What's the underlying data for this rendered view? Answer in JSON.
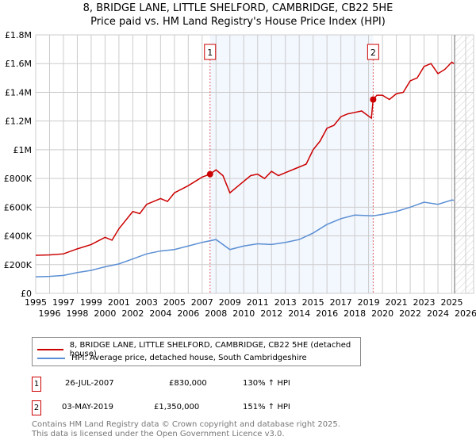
{
  "chart_data": {
    "type": "line",
    "title": "8, BRIDGE LANE, LITTLE SHELFORD, CAMBRIDGE, CB22 5HE",
    "subtitle": "Price paid vs. HM Land Registry's House Price Index (HPI)",
    "xlim": [
      1995,
      2026
    ],
    "ylim": [
      0,
      1800000
    ],
    "grid": true,
    "x_ticks": [
      1995,
      1996,
      1997,
      1998,
      1999,
      2000,
      2001,
      2002,
      2003,
      2004,
      2005,
      2006,
      2007,
      2008,
      2009,
      2010,
      2011,
      2012,
      2013,
      2014,
      2015,
      2016,
      2017,
      2018,
      2019,
      2020,
      2021,
      2022,
      2023,
      2024,
      2025,
      2026
    ],
    "y_ticks": [
      {
        "v": 0,
        "label": "£0"
      },
      {
        "v": 200000,
        "label": "£200K"
      },
      {
        "v": 400000,
        "label": "£400K"
      },
      {
        "v": 600000,
        "label": "£600K"
      },
      {
        "v": 800000,
        "label": "£800K"
      },
      {
        "v": 1000000,
        "label": "£1M"
      },
      {
        "v": 1200000,
        "label": "£1.2M"
      },
      {
        "v": 1400000,
        "label": "£1.4M"
      },
      {
        "v": 1600000,
        "label": "£1.6M"
      },
      {
        "v": 1800000,
        "label": "£1.8M"
      }
    ],
    "shaded_range": [
      2007.57,
      2019.33
    ],
    "forecast_start": 2025.2,
    "series": [
      {
        "name": "8, BRIDGE LANE, LITTLE SHELFORD, CAMBRIDGE, CB22 5HE (detached house)",
        "color": "#cc0000",
        "x": [
          1995,
          1996,
          1997,
          1998,
          1999,
          2000,
          2000.5,
          2001,
          2002,
          2002.5,
          2003,
          2004,
          2004.5,
          2005,
          2006,
          2007,
          2007.57,
          2008,
          2008.5,
          2009,
          2009.5,
          2010,
          2010.5,
          2011,
          2011.5,
          2012,
          2012.5,
          2013,
          2014,
          2014.5,
          2015,
          2015.5,
          2016,
          2016.5,
          2017,
          2017.5,
          2018,
          2018.5,
          2019.2,
          2019.33,
          2019.6,
          2020,
          2020.5,
          2021,
          2021.5,
          2022,
          2022.5,
          2023,
          2023.5,
          2024,
          2024.5,
          2025,
          2025.15
        ],
        "y": [
          265000,
          268000,
          275000,
          310000,
          340000,
          390000,
          370000,
          450000,
          570000,
          555000,
          620000,
          660000,
          640000,
          700000,
          750000,
          810000,
          830000,
          860000,
          820000,
          700000,
          740000,
          780000,
          820000,
          830000,
          800000,
          850000,
          820000,
          840000,
          880000,
          900000,
          1000000,
          1060000,
          1150000,
          1170000,
          1230000,
          1250000,
          1260000,
          1270000,
          1220000,
          1350000,
          1380000,
          1380000,
          1350000,
          1390000,
          1400000,
          1480000,
          1500000,
          1580000,
          1600000,
          1530000,
          1560000,
          1610000,
          1600000
        ]
      },
      {
        "name": "HPI: Average price, detached house, South Cambridgeshire",
        "color": "#5b8fd4",
        "x": [
          1995,
          1996,
          1997,
          1998,
          1999,
          2000,
          2001,
          2002,
          2003,
          2004,
          2005,
          2006,
          2007,
          2008,
          2009,
          2010,
          2011,
          2012,
          2013,
          2014,
          2015,
          2016,
          2017,
          2018,
          2019.33,
          2020,
          2021,
          2022,
          2023,
          2024,
          2025,
          2025.15
        ],
        "y": [
          115000,
          118000,
          125000,
          145000,
          160000,
          185000,
          205000,
          240000,
          275000,
          295000,
          305000,
          330000,
          355000,
          375000,
          305000,
          330000,
          345000,
          340000,
          355000,
          375000,
          420000,
          480000,
          520000,
          545000,
          540000,
          550000,
          570000,
          600000,
          635000,
          620000,
          650000,
          648000
        ]
      }
    ],
    "sales": [
      {
        "num": "1",
        "date": "26-JUL-2007",
        "price": "£830,000",
        "hpi": "130% ↑ HPI",
        "x": 2007.57,
        "y": 830000
      },
      {
        "num": "2",
        "date": "03-MAY-2019",
        "price": "£1,350,000",
        "hpi": "151% ↑ HPI",
        "x": 2019.33,
        "y": 1350000
      }
    ]
  },
  "footer": {
    "line1": "Contains HM Land Registry data © Crown copyright and database right 2025.",
    "line2": "This data is licensed under the Open Government Licence v3.0."
  }
}
